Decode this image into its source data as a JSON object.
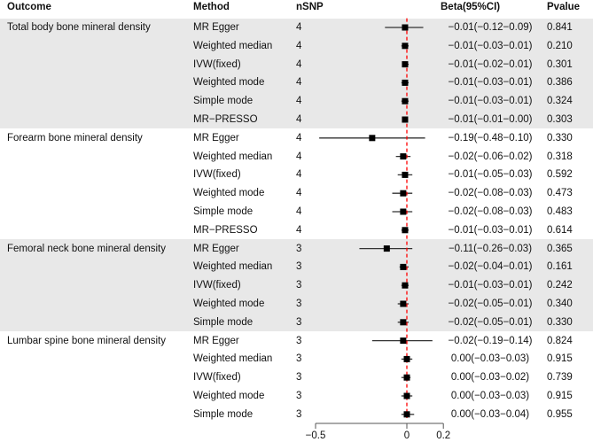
{
  "headers": {
    "outcome": "Outcome",
    "method": "Method",
    "nsnp": "nSNP",
    "beta": "Beta(95%CI)",
    "pvalue": "Pvalue"
  },
  "colors": {
    "band": "#e8e8e8",
    "reference_line": "#ff0000",
    "marker": "#000000",
    "ci_line": "#333333"
  },
  "chart_data": {
    "type": "forest",
    "reference_line": 0,
    "xlim": [
      -0.5,
      0.2
    ],
    "x_ticks": [
      "-0.5",
      "0",
      "0.2"
    ],
    "shaded_groups": [
      0,
      2
    ],
    "rows": [
      {
        "outcome": "Total body bone mineral density",
        "method": "MR Egger",
        "nsnp": "4",
        "beta_text": "−0.01(−0.12−0.09)",
        "pvalue": "0.841",
        "beta": -0.01,
        "lo": -0.12,
        "hi": 0.09,
        "group": 0
      },
      {
        "outcome": "",
        "method": "Weighted median",
        "nsnp": "4",
        "beta_text": "−0.01(−0.03−0.01)",
        "pvalue": "0.210",
        "beta": -0.01,
        "lo": -0.03,
        "hi": 0.01,
        "group": 0
      },
      {
        "outcome": "",
        "method": "IVW(fixed)",
        "nsnp": "4",
        "beta_text": "−0.01(−0.02−0.01)",
        "pvalue": "0.301",
        "beta": -0.01,
        "lo": -0.02,
        "hi": 0.01,
        "group": 0
      },
      {
        "outcome": "",
        "method": "Weighted mode",
        "nsnp": "4",
        "beta_text": "−0.01(−0.03−0.01)",
        "pvalue": "0.386",
        "beta": -0.01,
        "lo": -0.03,
        "hi": 0.01,
        "group": 0
      },
      {
        "outcome": "",
        "method": "Simple mode",
        "nsnp": "4",
        "beta_text": "−0.01(−0.03−0.01)",
        "pvalue": "0.324",
        "beta": -0.01,
        "lo": -0.03,
        "hi": 0.01,
        "group": 0
      },
      {
        "outcome": "",
        "method": "MR−PRESSO",
        "nsnp": "4",
        "beta_text": "−0.01(−0.01−0.00)",
        "pvalue": "0.303",
        "beta": -0.01,
        "lo": -0.01,
        "hi": 0.0,
        "group": 0
      },
      {
        "outcome": "Forearm bone mineral density",
        "method": "MR Egger",
        "nsnp": "4",
        "beta_text": "−0.19(−0.48−0.10)",
        "pvalue": "0.330",
        "beta": -0.19,
        "lo": -0.48,
        "hi": 0.1,
        "group": 1
      },
      {
        "outcome": "",
        "method": "Weighted median",
        "nsnp": "4",
        "beta_text": "−0.02(−0.06−0.02)",
        "pvalue": "0.318",
        "beta": -0.02,
        "lo": -0.06,
        "hi": 0.02,
        "group": 1
      },
      {
        "outcome": "",
        "method": "IVW(fixed)",
        "nsnp": "4",
        "beta_text": "−0.01(−0.05−0.03)",
        "pvalue": "0.592",
        "beta": -0.01,
        "lo": -0.05,
        "hi": 0.03,
        "group": 1
      },
      {
        "outcome": "",
        "method": "Weighted mode",
        "nsnp": "4",
        "beta_text": "−0.02(−0.08−0.03)",
        "pvalue": "0.473",
        "beta": -0.02,
        "lo": -0.08,
        "hi": 0.03,
        "group": 1
      },
      {
        "outcome": "",
        "method": "Simple mode",
        "nsnp": "4",
        "beta_text": "−0.02(−0.08−0.03)",
        "pvalue": "0.483",
        "beta": -0.02,
        "lo": -0.08,
        "hi": 0.03,
        "group": 1
      },
      {
        "outcome": "",
        "method": "MR−PRESSO",
        "nsnp": "4",
        "beta_text": "−0.01(−0.03−0.01)",
        "pvalue": "0.614",
        "beta": -0.01,
        "lo": -0.03,
        "hi": 0.01,
        "group": 1
      },
      {
        "outcome": "Femoral neck bone mineral density",
        "method": "MR Egger",
        "nsnp": "3",
        "beta_text": "−0.11(−0.26−0.03)",
        "pvalue": "0.365",
        "beta": -0.11,
        "lo": -0.26,
        "hi": 0.03,
        "group": 2
      },
      {
        "outcome": "",
        "method": "Weighted median",
        "nsnp": "3",
        "beta_text": "−0.02(−0.04−0.01)",
        "pvalue": "0.161",
        "beta": -0.02,
        "lo": -0.04,
        "hi": 0.01,
        "group": 2
      },
      {
        "outcome": "",
        "method": "IVW(fixed)",
        "nsnp": "3",
        "beta_text": "−0.01(−0.03−0.01)",
        "pvalue": "0.242",
        "beta": -0.01,
        "lo": -0.03,
        "hi": 0.01,
        "group": 2
      },
      {
        "outcome": "",
        "method": "Weighted mode",
        "nsnp": "3",
        "beta_text": "−0.02(−0.05−0.01)",
        "pvalue": "0.340",
        "beta": -0.02,
        "lo": -0.05,
        "hi": 0.01,
        "group": 2
      },
      {
        "outcome": "",
        "method": "Simple mode",
        "nsnp": "3",
        "beta_text": "−0.02(−0.05−0.01)",
        "pvalue": "0.330",
        "beta": -0.02,
        "lo": -0.05,
        "hi": 0.01,
        "group": 2
      },
      {
        "outcome": "Lumbar spine bone mineral density",
        "method": "MR Egger",
        "nsnp": "3",
        "beta_text": "−0.02(−0.19−0.14)",
        "pvalue": "0.824",
        "beta": -0.02,
        "lo": -0.19,
        "hi": 0.14,
        "group": 3
      },
      {
        "outcome": "",
        "method": "Weighted median",
        "nsnp": "3",
        "beta_text": "0.00(−0.03−0.03)",
        "pvalue": "0.915",
        "beta": 0.0,
        "lo": -0.03,
        "hi": 0.03,
        "group": 3
      },
      {
        "outcome": "",
        "method": "IVW(fixed)",
        "nsnp": "3",
        "beta_text": "0.00(−0.03−0.02)",
        "pvalue": "0.739",
        "beta": 0.0,
        "lo": -0.03,
        "hi": 0.02,
        "group": 3
      },
      {
        "outcome": "",
        "method": "Weighted mode",
        "nsnp": "3",
        "beta_text": "0.00(−0.03−0.03)",
        "pvalue": "0.915",
        "beta": 0.0,
        "lo": -0.03,
        "hi": 0.03,
        "group": 3
      },
      {
        "outcome": "",
        "method": "Simple mode",
        "nsnp": "3",
        "beta_text": "0.00(−0.03−0.04)",
        "pvalue": "0.955",
        "beta": 0.0,
        "lo": -0.03,
        "hi": 0.04,
        "group": 3
      }
    ]
  }
}
